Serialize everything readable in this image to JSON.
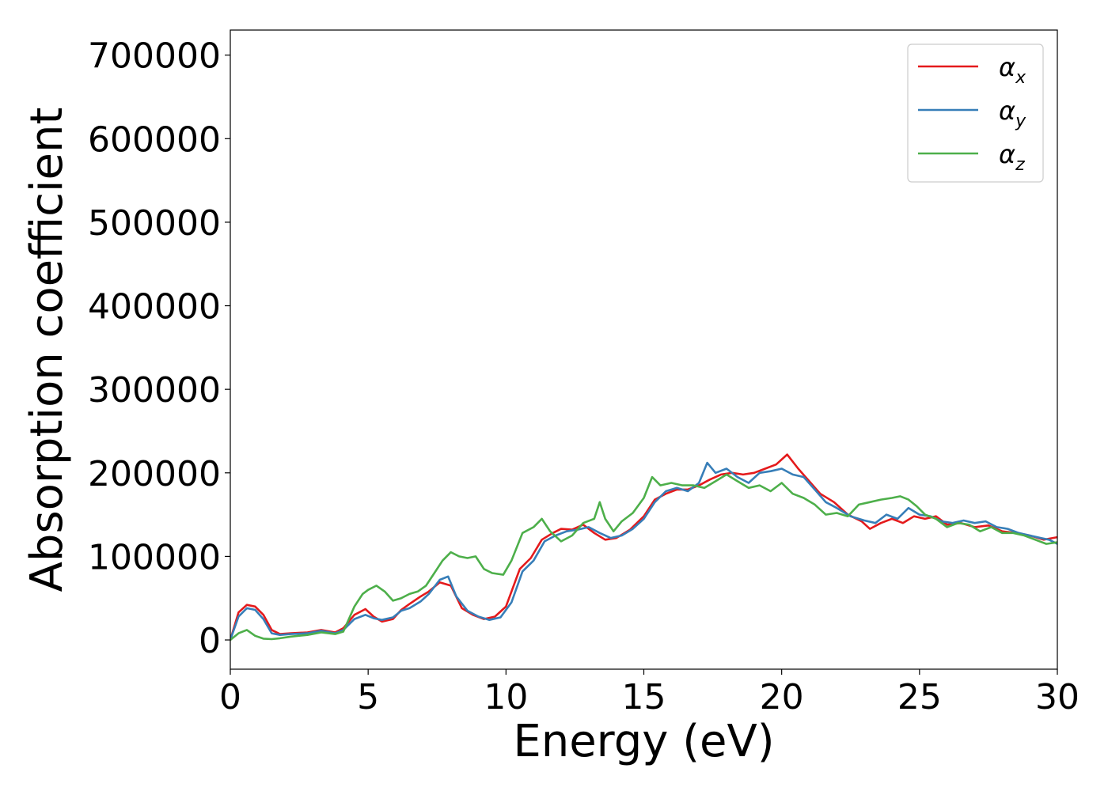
{
  "chart_data": {
    "type": "line",
    "title": "",
    "xlabel": "Energy (eV)",
    "ylabel": "Absorption coefficient",
    "xlim": [
      0,
      30
    ],
    "ylim": [
      -35000,
      730000
    ],
    "xticks": [
      0,
      5,
      10,
      15,
      20,
      25,
      30
    ],
    "yticks": [
      0,
      100000,
      200000,
      300000,
      400000,
      500000,
      600000,
      700000
    ],
    "grid": false,
    "legend_position": "top-right",
    "series": [
      {
        "name": "α_x",
        "label_base": "α",
        "label_sub": "x",
        "color": "#e41a1c",
        "x": [
          0,
          0.3,
          0.6,
          0.9,
          1.2,
          1.5,
          1.8,
          2.2,
          2.8,
          3.3,
          3.8,
          4.1,
          4.5,
          4.9,
          5.2,
          5.5,
          5.9,
          6.2,
          6.5,
          6.9,
          7.2,
          7.6,
          8.0,
          8.4,
          8.8,
          9.2,
          9.6,
          10.0,
          10.5,
          10.9,
          11.3,
          11.7,
          12.0,
          12.4,
          12.8,
          13.2,
          13.6,
          14.0,
          14.5,
          15.0,
          15.4,
          15.8,
          16.2,
          16.6,
          17.0,
          17.4,
          17.8,
          18.2,
          18.6,
          19.0,
          19.4,
          19.8,
          20.2,
          20.6,
          21.0,
          21.4,
          21.9,
          22.4,
          22.9,
          23.2,
          23.6,
          24.0,
          24.4,
          24.8,
          25.2,
          25.6,
          26.0,
          26.5,
          27.0,
          27.5,
          28.0,
          28.5,
          29.0,
          29.5,
          30.0
        ],
        "y": [
          0,
          33000,
          42000,
          40000,
          30000,
          12000,
          7000,
          8000,
          9000,
          12000,
          9000,
          14000,
          30000,
          37000,
          28000,
          22000,
          25000,
          36000,
          43000,
          52000,
          58000,
          69000,
          65000,
          38000,
          30000,
          25000,
          28000,
          40000,
          85000,
          98000,
          120000,
          128000,
          133000,
          132000,
          138000,
          128000,
          120000,
          122000,
          132000,
          148000,
          168000,
          175000,
          180000,
          180000,
          185000,
          192000,
          198000,
          200000,
          198000,
          200000,
          205000,
          210000,
          222000,
          205000,
          190000,
          175000,
          165000,
          150000,
          142000,
          133000,
          140000,
          145000,
          140000,
          148000,
          145000,
          148000,
          138000,
          140000,
          135000,
          137000,
          130000,
          128000,
          125000,
          120000,
          123000
        ]
      },
      {
        "name": "α_y",
        "label_base": "α",
        "label_sub": "y",
        "color": "#377eb8",
        "x": [
          0,
          0.3,
          0.6,
          0.9,
          1.2,
          1.5,
          1.8,
          2.2,
          2.8,
          3.3,
          3.8,
          4.1,
          4.5,
          4.9,
          5.2,
          5.5,
          5.9,
          6.2,
          6.5,
          6.9,
          7.2,
          7.6,
          7.9,
          8.2,
          8.6,
          9.0,
          9.4,
          9.8,
          10.2,
          10.6,
          11.0,
          11.4,
          11.8,
          12.2,
          12.6,
          13.0,
          13.4,
          13.8,
          14.2,
          14.6,
          15.0,
          15.4,
          15.8,
          16.2,
          16.6,
          17.0,
          17.3,
          17.6,
          18.0,
          18.4,
          18.8,
          19.2,
          19.6,
          20.0,
          20.4,
          20.8,
          21.2,
          21.6,
          22.0,
          22.5,
          23.0,
          23.4,
          23.8,
          24.2,
          24.6,
          25.0,
          25.4,
          25.8,
          26.2,
          26.6,
          27.0,
          27.4,
          27.8,
          28.2,
          28.6,
          29.0,
          29.4,
          29.7,
          30.0
        ],
        "y": [
          0,
          28000,
          38000,
          36000,
          25000,
          8000,
          6000,
          7000,
          8000,
          11000,
          8000,
          12000,
          25000,
          30000,
          26000,
          24000,
          27000,
          35000,
          38000,
          46000,
          55000,
          72000,
          76000,
          52000,
          35000,
          28000,
          24000,
          27000,
          45000,
          82000,
          95000,
          118000,
          125000,
          130000,
          132000,
          135000,
          128000,
          122000,
          125000,
          133000,
          145000,
          165000,
          178000,
          182000,
          178000,
          188000,
          212000,
          200000,
          205000,
          195000,
          188000,
          200000,
          202000,
          205000,
          198000,
          195000,
          180000,
          165000,
          158000,
          148000,
          143000,
          140000,
          150000,
          145000,
          158000,
          150000,
          148000,
          142000,
          140000,
          143000,
          140000,
          142000,
          135000,
          133000,
          128000,
          125000,
          122000,
          120000,
          115000
        ]
      },
      {
        "name": "α_z",
        "label_base": "α",
        "label_sub": "z",
        "color": "#4daf4a",
        "x": [
          0,
          0.3,
          0.6,
          0.9,
          1.2,
          1.5,
          1.8,
          2.2,
          2.8,
          3.3,
          3.8,
          4.1,
          4.5,
          4.8,
          5.0,
          5.3,
          5.6,
          5.9,
          6.2,
          6.5,
          6.8,
          7.1,
          7.4,
          7.7,
          8.0,
          8.3,
          8.6,
          8.9,
          9.2,
          9.5,
          9.9,
          10.2,
          10.6,
          11.0,
          11.3,
          11.6,
          12.0,
          12.4,
          12.8,
          13.2,
          13.4,
          13.6,
          13.9,
          14.2,
          14.6,
          15.0,
          15.3,
          15.6,
          16.0,
          16.4,
          16.8,
          17.2,
          17.6,
          18.0,
          18.4,
          18.8,
          19.2,
          19.6,
          20.0,
          20.4,
          20.8,
          21.2,
          21.6,
          22.0,
          22.4,
          22.8,
          23.2,
          23.6,
          24.0,
          24.3,
          24.6,
          24.9,
          25.2,
          25.6,
          26.0,
          26.4,
          26.8,
          27.2,
          27.6,
          28.0,
          28.4,
          28.8,
          29.2,
          29.6,
          30.0
        ],
        "y": [
          0,
          8000,
          12000,
          5000,
          1500,
          1000,
          2000,
          4000,
          6000,
          9000,
          7000,
          10000,
          40000,
          55000,
          60000,
          65000,
          58000,
          47000,
          50000,
          55000,
          58000,
          65000,
          80000,
          95000,
          105000,
          100000,
          98000,
          100000,
          85000,
          80000,
          78000,
          95000,
          128000,
          135000,
          145000,
          130000,
          118000,
          125000,
          140000,
          145000,
          165000,
          145000,
          130000,
          142000,
          152000,
          170000,
          195000,
          185000,
          188000,
          185000,
          185000,
          182000,
          190000,
          198000,
          190000,
          182000,
          185000,
          178000,
          188000,
          175000,
          170000,
          162000,
          150000,
          152000,
          148000,
          162000,
          165000,
          168000,
          170000,
          172000,
          168000,
          160000,
          150000,
          145000,
          135000,
          140000,
          138000,
          130000,
          135000,
          128000,
          128000,
          125000,
          120000,
          115000,
          117000
        ]
      }
    ]
  }
}
